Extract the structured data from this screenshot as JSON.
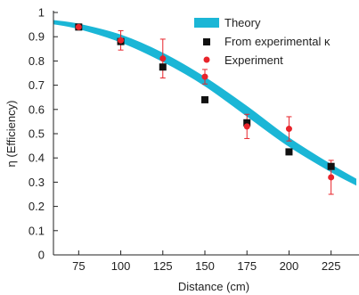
{
  "chart_data": {
    "type": "scatter",
    "xlabel": "Distance (cm)",
    "ylabel": "η (Efficiency)",
    "xlim": [
      60,
      240
    ],
    "ylim": [
      0,
      1
    ],
    "x_ticks": [
      75,
      100,
      125,
      150,
      175,
      200,
      225
    ],
    "y_ticks": [
      0,
      0.1,
      0.2,
      0.3,
      0.4,
      0.5,
      0.6,
      0.7,
      0.8,
      0.9,
      1
    ],
    "grid": false,
    "legend_position": "top-right",
    "series": [
      {
        "name": "Theory",
        "kind": "band",
        "color": "#1bb6d6",
        "x": [
          60,
          75,
          100,
          125,
          150,
          175,
          200,
          225,
          240
        ],
        "upper": [
          0.965,
          0.95,
          0.905,
          0.83,
          0.73,
          0.61,
          0.48,
          0.37,
          0.31
        ],
        "lower": [
          0.955,
          0.935,
          0.88,
          0.8,
          0.7,
          0.575,
          0.45,
          0.345,
          0.29
        ]
      },
      {
        "name": "From experimental κ",
        "kind": "marker",
        "marker": "square",
        "color": "#111111",
        "x": [
          75,
          100,
          125,
          150,
          175,
          200,
          225
        ],
        "y": [
          0.94,
          0.88,
          0.775,
          0.64,
          0.545,
          0.425,
          0.365
        ]
      },
      {
        "name": "Experiment",
        "kind": "marker",
        "marker": "circle",
        "color": "#e8242b",
        "x": [
          75,
          100,
          125,
          150,
          175,
          200,
          225
        ],
        "y": [
          0.94,
          0.885,
          0.81,
          0.735,
          0.53,
          0.52,
          0.32
        ],
        "yerr": [
          0.01,
          0.04,
          0.08,
          0.03,
          0.05,
          0.05,
          0.07
        ]
      }
    ]
  }
}
